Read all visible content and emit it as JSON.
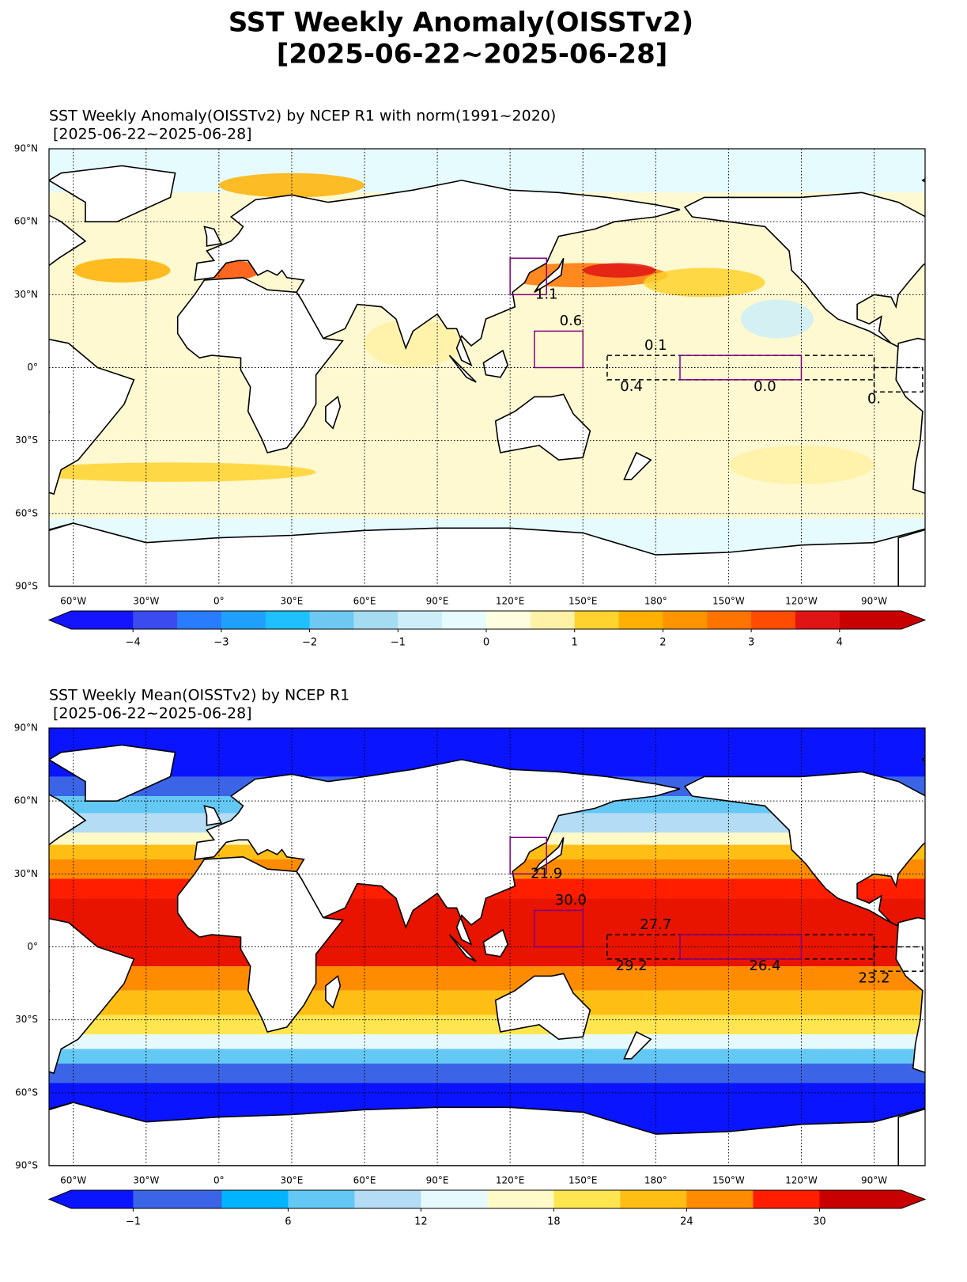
{
  "title": "SST Weekly Anomaly(OISSTv2)",
  "title_dates": "[2025-06-22~2025-06-28]",
  "lat_labels": [
    "90°N",
    "60°N",
    "30°N",
    "0°",
    "30°S",
    "60°S",
    "90°S"
  ],
  "lon_labels": [
    "60°W",
    "30°W",
    "0°",
    "30°E",
    "60°E",
    "90°E",
    "120°E",
    "150°E",
    "180°",
    "150°W",
    "120°W",
    "90°W"
  ],
  "panels": [
    {
      "title": "SST Weekly Anomaly(OISSTv2) by NCEP R1 with norm(1991~2020)",
      "dates": "[2025-06-22~2025-06-28]",
      "colorbar": {
        "lim": [
          -4.7,
          4.7
        ],
        "bounds": [
          -4,
          -3.5,
          -3,
          -2.5,
          -2,
          -1.5,
          -1,
          -0.5,
          0,
          0.5,
          1,
          1.5,
          2,
          2.5,
          3,
          3.5,
          4
        ],
        "colors": [
          "#1414ff",
          "#3a4cf0",
          "#2a7cff",
          "#1fa0ff",
          "#1ec0ff",
          "#6ec8f2",
          "#a6dcf2",
          "#cdeef8",
          "#e6fbfd",
          "#fffde0",
          "#fff2a6",
          "#ffd22e",
          "#ffb000",
          "#ff9400",
          "#ff7400",
          "#ff4c00",
          "#e01414",
          "#c80000"
        ],
        "ticks": [
          {
            "value": -4,
            "label": "−4"
          },
          {
            "value": -3,
            "label": "−3"
          },
          {
            "value": -2,
            "label": "−2"
          },
          {
            "value": -1,
            "label": "−1"
          },
          0,
          1,
          2,
          3,
          4
        ]
      },
      "box_labels": [
        "1.1",
        "0.6",
        "0.1",
        "0.4",
        "0.0",
        "0."
      ]
    },
    {
      "title": "SST Weekly Mean(OISSTv2) by NCEP R1",
      "dates": "[2025-06-22~2025-06-28]",
      "colorbar": {
        "lim": [
          -3.8,
          33.7
        ],
        "bounds": [
          -1,
          3,
          6,
          9,
          12,
          15,
          18,
          21,
          24,
          27,
          30
        ],
        "colors": [
          "#0a14ff",
          "#3c64e6",
          "#00b4ff",
          "#64c8f5",
          "#b4dcf5",
          "#e6fafd",
          "#fffac8",
          "#ffe650",
          "#ffbe14",
          "#ff8c00",
          "#ff1e00",
          "#c80000"
        ],
        "ticks": [
          {
            "value": -1,
            "label": "−1"
          },
          6,
          12,
          18,
          24,
          30
        ]
      },
      "box_labels": [
        "21.9",
        "30.0",
        "27.7",
        "29.2",
        "26.4",
        "23.2"
      ]
    }
  ]
}
